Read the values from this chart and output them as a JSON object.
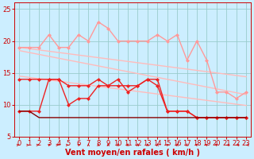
{
  "title": "",
  "xlabel": "Vent moyen/en rafales ( km/h )",
  "background_color": "#cceeff",
  "grid_color": "#99cccc",
  "xlim": [
    -0.5,
    23.5
  ],
  "ylim": [
    5,
    26
  ],
  "yticks": [
    5,
    10,
    15,
    20,
    25
  ],
  "xticks": [
    0,
    1,
    2,
    3,
    4,
    5,
    6,
    7,
    8,
    9,
    10,
    11,
    12,
    13,
    14,
    15,
    16,
    17,
    18,
    19,
    20,
    21,
    22,
    23
  ],
  "series": [
    {
      "x": [
        0,
        1,
        2,
        3,
        4,
        5,
        6,
        7,
        8,
        9,
        10,
        11,
        12,
        13,
        14,
        15,
        16,
        17,
        18,
        19,
        20,
        21,
        22,
        23
      ],
      "y": [
        19.0,
        18.8,
        18.6,
        18.4,
        18.2,
        18.0,
        17.8,
        17.6,
        17.4,
        17.2,
        17.0,
        16.8,
        16.6,
        16.4,
        16.2,
        16.0,
        15.8,
        15.6,
        15.4,
        15.2,
        15.0,
        14.8,
        14.6,
        14.4
      ],
      "color": "#ffbbbb",
      "lw": 1.0,
      "marker": null
    },
    {
      "x": [
        0,
        1,
        2,
        3,
        4,
        5,
        6,
        7,
        8,
        9,
        10,
        11,
        12,
        13,
        14,
        15,
        16,
        17,
        18,
        19,
        20,
        21,
        22,
        23
      ],
      "y": [
        18.5,
        18.2,
        17.9,
        17.6,
        17.3,
        17.0,
        16.7,
        16.4,
        16.1,
        15.8,
        15.5,
        15.2,
        14.9,
        14.6,
        14.3,
        14.0,
        13.7,
        13.4,
        13.1,
        12.8,
        12.5,
        12.2,
        11.9,
        11.6
      ],
      "color": "#ffbbbb",
      "lw": 1.0,
      "marker": null
    },
    {
      "x": [
        0,
        1,
        2,
        3,
        4,
        5,
        6,
        7,
        8,
        9,
        10,
        11,
        12,
        13,
        14,
        15,
        16,
        17,
        18,
        19,
        20,
        21,
        22,
        23
      ],
      "y": [
        14.5,
        14.3,
        14.1,
        13.9,
        13.7,
        13.5,
        13.3,
        13.1,
        12.9,
        12.7,
        12.5,
        12.3,
        12.1,
        11.9,
        11.7,
        11.5,
        11.3,
        11.1,
        10.9,
        10.7,
        10.5,
        10.3,
        10.1,
        9.9
      ],
      "color": "#ffbbbb",
      "lw": 1.0,
      "marker": null
    },
    {
      "x": [
        0,
        1,
        2,
        3,
        4,
        5,
        6,
        7,
        8,
        9,
        10,
        11,
        12,
        13,
        14,
        15,
        16,
        17,
        18,
        19,
        20,
        21,
        22,
        23
      ],
      "y": [
        19,
        19,
        19,
        21,
        19,
        19,
        21,
        20,
        23,
        22,
        20,
        20,
        20,
        20,
        21,
        20,
        21,
        17,
        20,
        17,
        12,
        12,
        11,
        12
      ],
      "color": "#ff9999",
      "lw": 1.0,
      "marker": "D",
      "markersize": 2
    },
    {
      "x": [
        0,
        1,
        2,
        3,
        4,
        5,
        6,
        7,
        8,
        9,
        10,
        11,
        12,
        13,
        14,
        15,
        16,
        17,
        18,
        19,
        20,
        21,
        22,
        23
      ],
      "y": [
        9,
        9,
        9,
        14,
        14,
        10,
        11,
        11,
        13,
        13,
        14,
        12,
        13,
        14,
        14,
        9,
        9,
        9,
        8,
        8,
        8,
        8,
        8,
        8
      ],
      "color": "#ee2222",
      "lw": 1.0,
      "marker": "D",
      "markersize": 2
    },
    {
      "x": [
        0,
        1,
        2,
        3,
        4,
        5,
        6,
        7,
        8,
        9,
        10,
        11,
        12,
        13,
        14,
        15,
        16,
        17,
        18,
        19,
        20,
        21,
        22,
        23
      ],
      "y": [
        14,
        14,
        14,
        14,
        14,
        13,
        13,
        13,
        14,
        13,
        13,
        13,
        13,
        14,
        13,
        9,
        9,
        9,
        8,
        8,
        8,
        8,
        8,
        8
      ],
      "color": "#ee2222",
      "lw": 1.0,
      "marker": "D",
      "markersize": 2
    },
    {
      "x": [
        0,
        1,
        2,
        3,
        4,
        5,
        6,
        7,
        8,
        9,
        10,
        11,
        12,
        13,
        14,
        15,
        16,
        17,
        18,
        19,
        20,
        21,
        22,
        23
      ],
      "y": [
        9,
        9,
        8,
        8,
        8,
        8,
        8,
        8,
        8,
        8,
        8,
        8,
        8,
        8,
        8,
        8,
        8,
        8,
        8,
        8,
        8,
        8,
        8,
        8
      ],
      "color": "#880000",
      "lw": 1.0,
      "marker": null
    }
  ],
  "text_fontsize": 6,
  "xlabel_fontsize": 7,
  "tick_fontsize": 6
}
